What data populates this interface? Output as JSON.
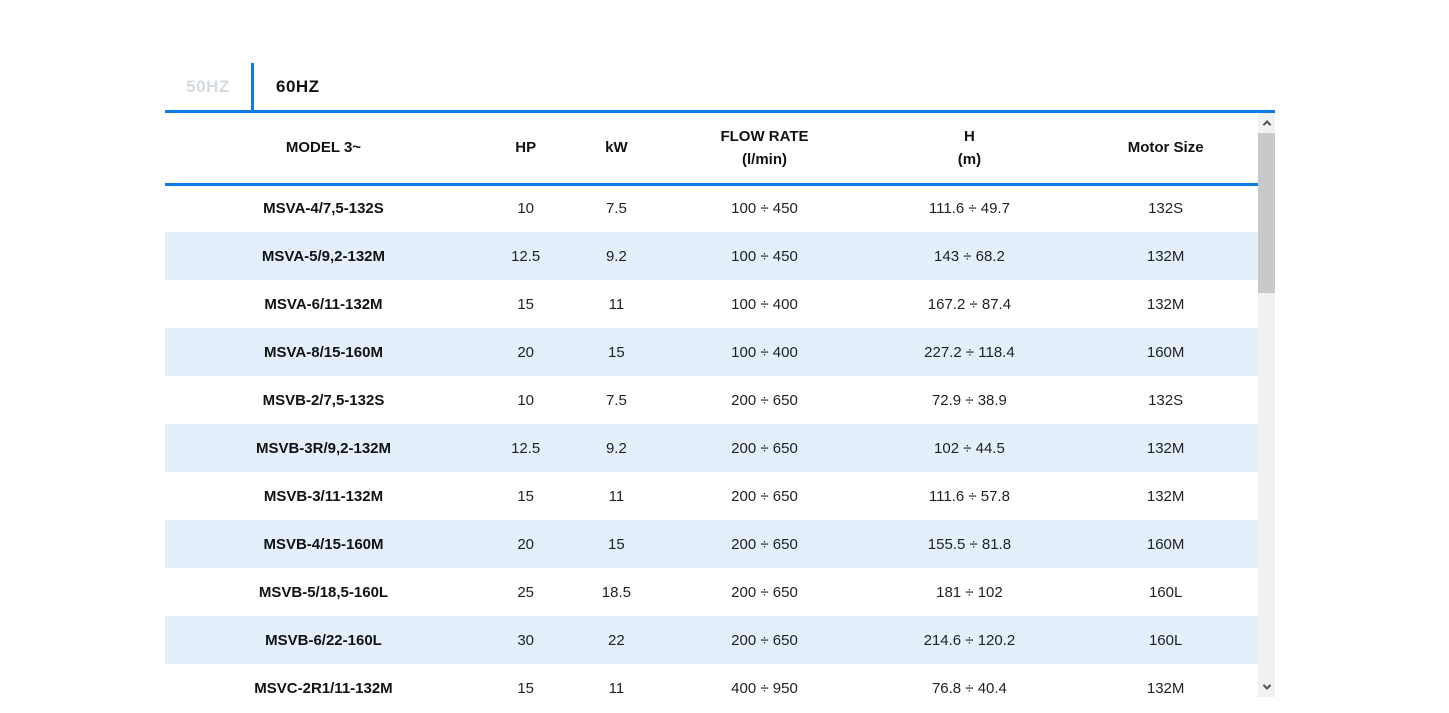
{
  "tabs": [
    {
      "id": "50hz",
      "label": "50HZ",
      "active": false
    },
    {
      "id": "60hz",
      "label": "60HZ",
      "active": true
    }
  ],
  "table": {
    "columns": [
      {
        "key": "model",
        "label": "MODEL 3~",
        "sublabel": ""
      },
      {
        "key": "hp",
        "label": "HP",
        "sublabel": ""
      },
      {
        "key": "kw",
        "label": "kW",
        "sublabel": ""
      },
      {
        "key": "flow_rate",
        "label": "FLOW RATE",
        "sublabel": "(l/min)"
      },
      {
        "key": "h",
        "label": "H",
        "sublabel": "(m)"
      },
      {
        "key": "motor_size",
        "label": "Motor Size",
        "sublabel": ""
      }
    ],
    "rows": [
      [
        "MSVA-4/7,5-132S",
        "10",
        "7.5",
        "100 ÷ 450",
        "111.6 ÷ 49.7",
        "132S"
      ],
      [
        "MSVA-5/9,2-132M",
        "12.5",
        "9.2",
        "100 ÷ 450",
        "143 ÷ 68.2",
        "132M"
      ],
      [
        "MSVA-6/11-132M",
        "15",
        "11",
        "100 ÷ 400",
        "167.2 ÷ 87.4",
        "132M"
      ],
      [
        "MSVA-8/15-160M",
        "20",
        "15",
        "100 ÷ 400",
        "227.2 ÷ 118.4",
        "160M"
      ],
      [
        "MSVB-2/7,5-132S",
        "10",
        "7.5",
        "200 ÷ 650",
        "72.9 ÷ 38.9",
        "132S"
      ],
      [
        "MSVB-3R/9,2-132M",
        "12.5",
        "9.2",
        "200 ÷ 650",
        "102 ÷ 44.5",
        "132M"
      ],
      [
        "MSVB-3/11-132M",
        "15",
        "11",
        "200 ÷ 650",
        "111.6 ÷ 57.8",
        "132M"
      ],
      [
        "MSVB-4/15-160M",
        "20",
        "15",
        "200 ÷ 650",
        "155.5 ÷ 81.8",
        "160M"
      ],
      [
        "MSVB-5/18,5-160L",
        "25",
        "18.5",
        "200 ÷ 650",
        "181 ÷ 102",
        "160L"
      ],
      [
        "MSVB-6/22-160L",
        "30",
        "22",
        "200 ÷ 650",
        "214.6 ÷ 120.2",
        "160L"
      ],
      [
        "MSVC-2R1/11-132M",
        "15",
        "11",
        "400 ÷ 950",
        "76.8 ÷ 40.4",
        "132M"
      ]
    ]
  },
  "scrollbar": {
    "up_icon": "chevron-up",
    "down_icon": "chevron-down"
  },
  "colors": {
    "accent_blue": "#0b7ce8",
    "row_alt_blue": "#e4effc",
    "inactive_tab_gray": "#d4dade"
  }
}
